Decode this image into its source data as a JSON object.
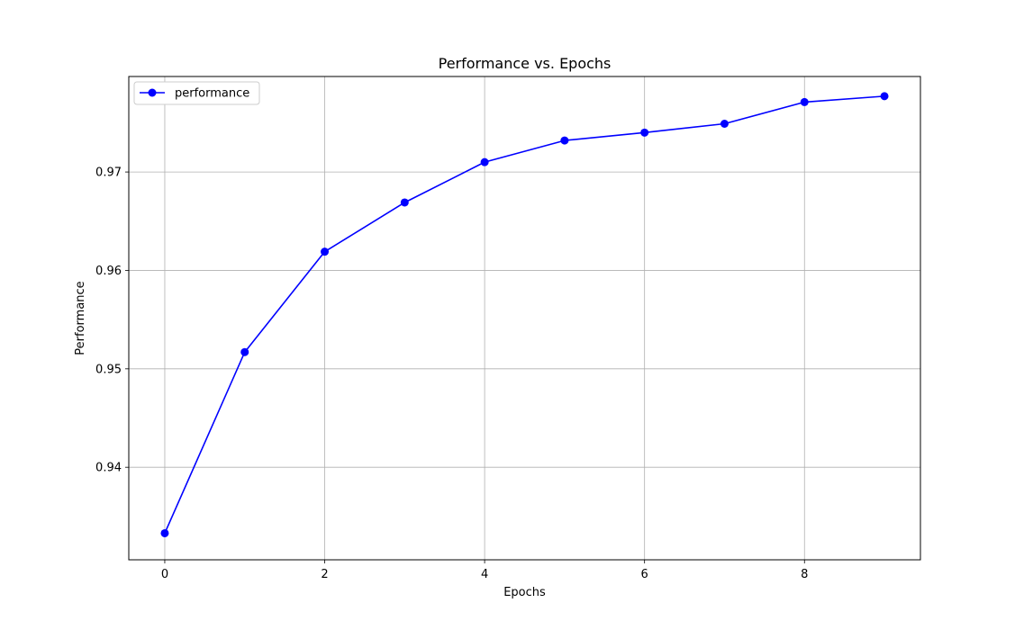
{
  "chart_data": {
    "type": "line",
    "title": "Performance vs. Epochs",
    "xlabel": "Epochs",
    "ylabel": "Performance",
    "xlim": [
      -0.45,
      9.45
    ],
    "ylim": [
      0.9306,
      0.9797
    ],
    "xticks": [
      0,
      2,
      4,
      6,
      8
    ],
    "xtick_labels": [
      "0",
      "2",
      "4",
      "6",
      "8"
    ],
    "yticks": [
      0.94,
      0.95,
      0.96,
      0.97
    ],
    "ytick_labels": [
      "0.94",
      "0.95",
      "0.96",
      "0.97"
    ],
    "grid": true,
    "legend_position": "upper-left",
    "series": [
      {
        "name": "performance",
        "color": "#0000ff",
        "marker": "circle",
        "x": [
          0,
          1,
          2,
          3,
          4,
          5,
          6,
          7,
          8,
          9
        ],
        "y": [
          0.9333,
          0.9517,
          0.9619,
          0.9669,
          0.971,
          0.9732,
          0.974,
          0.9749,
          0.9771,
          0.9777
        ]
      }
    ]
  }
}
